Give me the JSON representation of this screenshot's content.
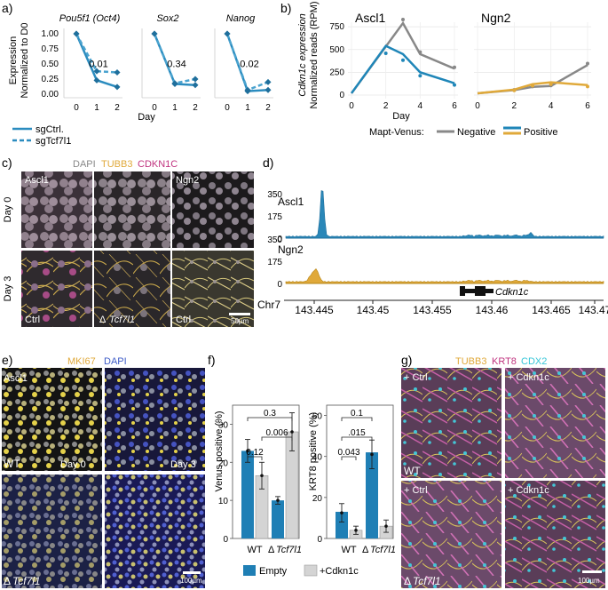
{
  "panels": {
    "a": "a)",
    "b": "b)",
    "c": "c)",
    "d": "d)",
    "e": "e)",
    "f": "f)",
    "g": "g)"
  },
  "panel_a": {
    "ylabel": [
      "Expression",
      "Normalized to D0"
    ],
    "xlabel": "Day",
    "yticks": [
      "1.00",
      "0.75",
      "0.50",
      "0.25",
      "0.00"
    ],
    "xticks": [
      "0",
      "1",
      "2"
    ],
    "legend": [
      "sgCtrl.",
      "sgTcf7l1"
    ],
    "genes": [
      {
        "title": "Pou5f1 (Oct4)",
        "pvalue": "0.01"
      },
      {
        "title": "Sox2",
        "pvalue": "0.34"
      },
      {
        "title": "Nanog",
        "pvalue": "0.02"
      }
    ]
  },
  "panel_b": {
    "ylabel": [
      "Cdkn1c expression",
      "Normalized reads (RPM)"
    ],
    "xlabel": "Day",
    "yticks": [
      "750",
      "500",
      "250",
      "0"
    ],
    "xticks": [
      "0",
      "2",
      "4",
      "6"
    ],
    "titles": [
      "Ascl1",
      "Ngn2"
    ],
    "legend_title": "Mapt-Venus:",
    "legend": [
      "Negative",
      "Positive"
    ]
  },
  "panel_c": {
    "stains": [
      "DAPI",
      "TUBB3",
      "CDKN1C"
    ],
    "row_labels": [
      "Day 0",
      "Day 3"
    ],
    "top_labels": [
      "Ascl1",
      "Ngn2"
    ],
    "bottom_labels": [
      "Ctrl",
      "Tcf7l1",
      "Ctrl"
    ],
    "delta": "Δ",
    "scalebar": "50µm"
  },
  "panel_d": {
    "tracks": [
      "Ascl1",
      "Ngn2"
    ],
    "yticks": [
      "350",
      "175",
      "0"
    ],
    "gene": "Cdkn1c",
    "chrom": "Chr7",
    "xticks": [
      "143.445",
      "143.45",
      "143.455",
      "143.46",
      "143.465",
      "143.47"
    ]
  },
  "panel_e": {
    "stains": [
      "MKI67",
      "DAPI"
    ],
    "labels": {
      "ascl1": "Ascl1",
      "wt": "WT",
      "day0": "Day 0",
      "day3": "Day 3",
      "delta": "Δ",
      "tcf": "Tcf7l1"
    },
    "scalebar": "100µm"
  },
  "panel_f": {
    "left_ylabel": "Venus positive (%)",
    "right_ylabel": "KRT8 positive (%)",
    "left_yticks": [
      "30",
      "20",
      "10",
      "0"
    ],
    "right_yticks": [
      "60",
      "40",
      "20",
      "0"
    ],
    "xlabels": [
      "WT",
      "Tcf7l1"
    ],
    "delta": "Δ",
    "left_p": [
      "0.3",
      "0.006",
      "0.12"
    ],
    "right_p": [
      "0.1",
      ".015",
      "0.043"
    ],
    "legend": [
      "Empty",
      "+Cdkn1c"
    ]
  },
  "panel_g": {
    "stains": [
      "TUBB3",
      "KRT8",
      "CDX2"
    ],
    "labels": [
      "+ Ctrl",
      "+ Cdkn1c",
      "+ Ctrl",
      "+ Cdkn1c"
    ],
    "wt": "WT",
    "delta": "Δ",
    "tcf": "Tcf7l1",
    "scalebar": "100µm"
  },
  "colors": {
    "blue": "#1f86b8",
    "lightblue": "#4aa3cf",
    "grey": "#888888",
    "gold": "#e0a93a",
    "magenta": "#c0337f",
    "cyan": "#35c6d8",
    "barblue": "#1f7fb5",
    "bargrey": "#d4d4d4"
  },
  "chart_data": [
    {
      "type": "line",
      "xlabel": "Day",
      "x": [
        0,
        1,
        2
      ],
      "ylim": [
        0,
        1.0
      ],
      "panels": [
        {
          "title": "Pou5f1 (Oct4)",
          "series": [
            {
              "name": "sgCtrl.",
              "values": [
                1.0,
                0.23,
                0.12
              ]
            },
            {
              "name": "sgTcf7l1",
              "values": [
                1.0,
                0.38,
                0.36
              ]
            }
          ]
        },
        {
          "title": "Sox2",
          "series": [
            {
              "name": "sgCtrl.",
              "values": [
                1.0,
                0.17,
                0.15
              ]
            },
            {
              "name": "sgTcf7l1",
              "values": [
                1.0,
                0.18,
                0.25
              ]
            }
          ]
        },
        {
          "title": "Nanog",
          "series": [
            {
              "name": "sgCtrl.",
              "values": [
                1.0,
                0.05,
                0.07
              ]
            },
            {
              "name": "sgTcf7l1",
              "values": [
                1.0,
                0.07,
                0.2
              ]
            }
          ]
        }
      ]
    },
    {
      "type": "line",
      "xlabel": "Day",
      "x": [
        0,
        2,
        3,
        4,
        6
      ],
      "ylim": [
        0,
        800
      ],
      "panels": [
        {
          "title": "Ascl1",
          "series": [
            {
              "name": "Negative",
              "values": [
                20,
                null,
                790,
                450,
                290
              ]
            },
            {
              "name": "Positive",
              "values": [
                20,
                540,
                450,
                250,
                130
              ]
            }
          ]
        },
        {
          "title": "Ngn2",
          "series": [
            {
              "name": "Negative",
              "values": [
                20,
                55,
                90,
                100,
                330
              ]
            },
            {
              "name": "Positive",
              "values": [
                20,
                60,
                120,
                140,
                110
              ]
            }
          ]
        }
      ]
    },
    {
      "type": "bar",
      "ylabel": "Venus positive (%)",
      "categories": [
        "WT",
        "ΔTcf7l1"
      ],
      "ylim": [
        0,
        35
      ],
      "series": [
        {
          "name": "Empty",
          "values": [
            23,
            10
          ]
        },
        {
          "name": "+Cdkn1c",
          "values": [
            16.5,
            28
          ]
        }
      ]
    },
    {
      "type": "bar",
      "ylabel": "KRT8 positive (%)",
      "categories": [
        "WT",
        "ΔTcf7l1"
      ],
      "ylim": [
        0,
        65
      ],
      "series": [
        {
          "name": "Empty",
          "values": [
            13,
            42
          ]
        },
        {
          "name": "+Cdkn1c",
          "values": [
            4,
            6
          ]
        }
      ]
    }
  ]
}
